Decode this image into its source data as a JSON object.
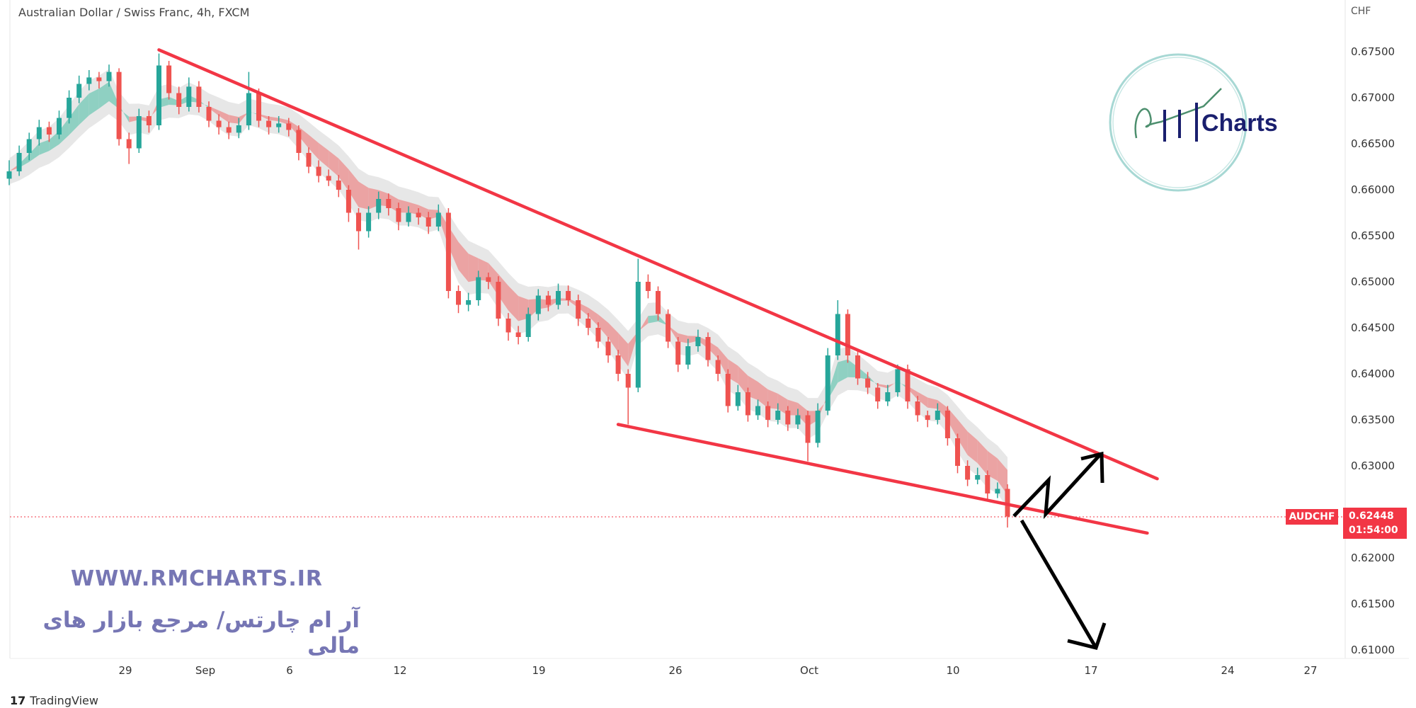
{
  "header": {
    "title": "Australian Dollar / Swiss Franc, 4h, FXCM",
    "currency": "CHF"
  },
  "price_axis": [
    "0.67500",
    "0.67000",
    "0.66500",
    "0.66000",
    "0.65500",
    "0.65000",
    "0.64500",
    "0.64000",
    "0.63500",
    "0.63000",
    "0.62000",
    "0.61500",
    "0.61000"
  ],
  "time_axis": [
    "29",
    "Sep",
    "6",
    "12",
    "19",
    "26",
    "Oct",
    "10",
    "17",
    "24",
    "27"
  ],
  "symbol_tag": "AUDCHF",
  "last_price": {
    "value": "0.62448",
    "countdown": "01:54:00"
  },
  "watermark": {
    "url": "WWW.RMCHARTS.IR",
    "tagline": "آر ام چارتس/ مرجع بازار های مالی",
    "logo": "RM Charts"
  },
  "footer": {
    "brand": "TradingView"
  },
  "colors": {
    "up": "#26a69a",
    "down": "#ef5350",
    "trendline": "#f23645",
    "price_tag": "#f23645",
    "arrows": "#000000"
  },
  "chart_data": {
    "type": "candlestick",
    "title": "Australian Dollar / Swiss Franc, 4h, FXCM",
    "ylim": [
      0.6075,
      0.6775
    ],
    "candles": [
      [
        0.6612,
        0.6632,
        0.6605,
        0.662
      ],
      [
        0.662,
        0.6648,
        0.6615,
        0.664
      ],
      [
        0.664,
        0.6662,
        0.6632,
        0.6655
      ],
      [
        0.6655,
        0.6676,
        0.6648,
        0.6668
      ],
      [
        0.6668,
        0.6674,
        0.6652,
        0.666
      ],
      [
        0.666,
        0.6686,
        0.6655,
        0.6678
      ],
      [
        0.6678,
        0.6708,
        0.6672,
        0.67
      ],
      [
        0.67,
        0.6724,
        0.6694,
        0.6715
      ],
      [
        0.6715,
        0.673,
        0.6708,
        0.6722
      ],
      [
        0.6722,
        0.6728,
        0.671,
        0.6718
      ],
      [
        0.6718,
        0.6736,
        0.6712,
        0.6728
      ],
      [
        0.6728,
        0.6732,
        0.6648,
        0.6655
      ],
      [
        0.6655,
        0.6662,
        0.6628,
        0.6645
      ],
      [
        0.6645,
        0.6688,
        0.664,
        0.668
      ],
      [
        0.668,
        0.6686,
        0.6662,
        0.667
      ],
      [
        0.667,
        0.6748,
        0.6665,
        0.6735
      ],
      [
        0.6735,
        0.674,
        0.6698,
        0.6705
      ],
      [
        0.6705,
        0.6712,
        0.6682,
        0.669
      ],
      [
        0.669,
        0.6722,
        0.6685,
        0.6712
      ],
      [
        0.6712,
        0.6718,
        0.6684,
        0.669
      ],
      [
        0.669,
        0.6696,
        0.6668,
        0.6675
      ],
      [
        0.6675,
        0.6682,
        0.666,
        0.6668
      ],
      [
        0.6668,
        0.6674,
        0.6655,
        0.6662
      ],
      [
        0.6662,
        0.6678,
        0.6656,
        0.667
      ],
      [
        0.667,
        0.6728,
        0.6665,
        0.6705
      ],
      [
        0.6705,
        0.671,
        0.6668,
        0.6675
      ],
      [
        0.6675,
        0.668,
        0.666,
        0.6668
      ],
      [
        0.6668,
        0.668,
        0.6662,
        0.6672
      ],
      [
        0.6672,
        0.6678,
        0.6658,
        0.6665
      ],
      [
        0.6665,
        0.667,
        0.6632,
        0.664
      ],
      [
        0.664,
        0.6646,
        0.6618,
        0.6625
      ],
      [
        0.6625,
        0.6632,
        0.6608,
        0.6615
      ],
      [
        0.6615,
        0.6622,
        0.6604,
        0.661
      ],
      [
        0.661,
        0.6616,
        0.6592,
        0.66
      ],
      [
        0.66,
        0.6605,
        0.6565,
        0.6575
      ],
      [
        0.6575,
        0.658,
        0.6535,
        0.6555
      ],
      [
        0.6555,
        0.6582,
        0.6548,
        0.6575
      ],
      [
        0.6575,
        0.6598,
        0.6568,
        0.659
      ],
      [
        0.659,
        0.6596,
        0.6572,
        0.658
      ],
      [
        0.658,
        0.6586,
        0.6556,
        0.6565
      ],
      [
        0.6565,
        0.6582,
        0.656,
        0.6575
      ],
      [
        0.6575,
        0.658,
        0.6562,
        0.657
      ],
      [
        0.657,
        0.6576,
        0.6552,
        0.656
      ],
      [
        0.656,
        0.6584,
        0.6555,
        0.6575
      ],
      [
        0.6575,
        0.658,
        0.6482,
        0.649
      ],
      [
        0.649,
        0.6496,
        0.6466,
        0.6475
      ],
      [
        0.6475,
        0.6488,
        0.6468,
        0.648
      ],
      [
        0.648,
        0.6512,
        0.6474,
        0.6505
      ],
      [
        0.6505,
        0.651,
        0.6492,
        0.65
      ],
      [
        0.65,
        0.6506,
        0.6452,
        0.646
      ],
      [
        0.646,
        0.6466,
        0.6436,
        0.6445
      ],
      [
        0.6445,
        0.6452,
        0.6432,
        0.644
      ],
      [
        0.644,
        0.6472,
        0.6435,
        0.6465
      ],
      [
        0.6465,
        0.6492,
        0.6458,
        0.6485
      ],
      [
        0.6485,
        0.649,
        0.6468,
        0.6475
      ],
      [
        0.6475,
        0.6498,
        0.647,
        0.649
      ],
      [
        0.649,
        0.6496,
        0.6474,
        0.648
      ],
      [
        0.648,
        0.6486,
        0.6452,
        0.646
      ],
      [
        0.646,
        0.6466,
        0.6442,
        0.645
      ],
      [
        0.645,
        0.6456,
        0.6428,
        0.6435
      ],
      [
        0.6435,
        0.644,
        0.6412,
        0.642
      ],
      [
        0.642,
        0.6426,
        0.6392,
        0.64
      ],
      [
        0.64,
        0.6405,
        0.6345,
        0.6385
      ],
      [
        0.6385,
        0.6525,
        0.638,
        0.65
      ],
      [
        0.65,
        0.6508,
        0.6482,
        0.649
      ],
      [
        0.649,
        0.6495,
        0.6458,
        0.6465
      ],
      [
        0.6465,
        0.647,
        0.6428,
        0.6435
      ],
      [
        0.6435,
        0.644,
        0.6402,
        0.641
      ],
      [
        0.641,
        0.6438,
        0.6405,
        0.643
      ],
      [
        0.643,
        0.6448,
        0.6424,
        0.644
      ],
      [
        0.644,
        0.6445,
        0.6408,
        0.6415
      ],
      [
        0.6415,
        0.642,
        0.6392,
        0.64
      ],
      [
        0.64,
        0.6405,
        0.6358,
        0.6365
      ],
      [
        0.6365,
        0.6388,
        0.636,
        0.638
      ],
      [
        0.638,
        0.6385,
        0.6348,
        0.6355
      ],
      [
        0.6355,
        0.6372,
        0.635,
        0.6365
      ],
      [
        0.6365,
        0.637,
        0.6342,
        0.635
      ],
      [
        0.635,
        0.6368,
        0.6345,
        0.636
      ],
      [
        0.636,
        0.6365,
        0.6338,
        0.6345
      ],
      [
        0.6345,
        0.6362,
        0.634,
        0.6355
      ],
      [
        0.6355,
        0.636,
        0.6305,
        0.6325
      ],
      [
        0.6325,
        0.6368,
        0.632,
        0.636
      ],
      [
        0.636,
        0.6428,
        0.6355,
        0.642
      ],
      [
        0.642,
        0.648,
        0.6415,
        0.6465
      ],
      [
        0.6465,
        0.647,
        0.6412,
        0.642
      ],
      [
        0.642,
        0.6426,
        0.6388,
        0.6395
      ],
      [
        0.6395,
        0.6402,
        0.6378,
        0.6385
      ],
      [
        0.6385,
        0.639,
        0.6362,
        0.637
      ],
      [
        0.637,
        0.6388,
        0.6365,
        0.638
      ],
      [
        0.638,
        0.641,
        0.6375,
        0.6405
      ],
      [
        0.6405,
        0.641,
        0.6362,
        0.637
      ],
      [
        0.637,
        0.6376,
        0.6348,
        0.6355
      ],
      [
        0.6355,
        0.636,
        0.6342,
        0.635
      ],
      [
        0.635,
        0.6368,
        0.6345,
        0.636
      ],
      [
        0.636,
        0.6365,
        0.6322,
        0.633
      ],
      [
        0.633,
        0.6335,
        0.6292,
        0.63
      ],
      [
        0.63,
        0.6306,
        0.6278,
        0.6285
      ],
      [
        0.6285,
        0.6298,
        0.628,
        0.629
      ],
      [
        0.629,
        0.6295,
        0.6262,
        0.627
      ],
      [
        0.627,
        0.6282,
        0.6265,
        0.6275
      ],
      [
        0.6275,
        0.628,
        0.6233,
        0.6245
      ]
    ],
    "trendlines": [
      {
        "from": {
          "bar": 15,
          "price": 0.6752
        },
        "to": {
          "bar": 115,
          "price": 0.6286
        }
      },
      {
        "from": {
          "bar": 61,
          "price": 0.6345
        },
        "to": {
          "bar": 114,
          "price": 0.6227
        }
      }
    ],
    "last_price": 0.62448
  }
}
